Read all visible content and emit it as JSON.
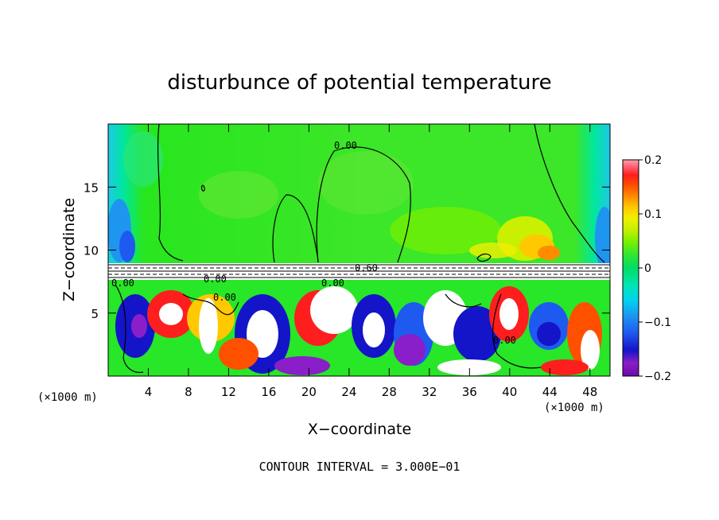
{
  "chart_data": {
    "type": "heatmap",
    "title": "disturbunce of potential temperature",
    "xlabel": "X−coordinate",
    "ylabel": "Z−coordinate",
    "x_unit": "(×1000 m)",
    "x_unit_right": "(×1000 m)",
    "xlim": [
      0,
      50
    ],
    "ylim": [
      0,
      20
    ],
    "xticks": [
      4,
      8,
      12,
      16,
      20,
      24,
      28,
      32,
      36,
      40,
      44,
      48
    ],
    "xtick_labels": [
      "4",
      "8",
      "12",
      "16",
      "20",
      "24",
      "28",
      "32",
      "36",
      "40",
      "44",
      "48"
    ],
    "yticks": [
      5,
      10,
      15
    ],
    "ytick_labels": [
      "5",
      "10",
      "15"
    ],
    "colorbar": {
      "range": [
        -0.2,
        0.2
      ],
      "ticks": [
        0.2,
        0.1,
        0,
        -0.1,
        -0.2
      ],
      "tick_labels": [
        "0.2",
        "0.1",
        "0",
        "−0.1",
        "−0.2"
      ],
      "colors": [
        "#6a0aa8",
        "#8a1ec8",
        "#1414c8",
        "#1e5af0",
        "#1e96f0",
        "#00d2f0",
        "#00e6b4",
        "#00dc64",
        "#32e632",
        "#78f000",
        "#c8f000",
        "#f0f000",
        "#ffc800",
        "#ff8c00",
        "#ff5000",
        "#ff1e1e",
        "#ff6478",
        "#ffa0a8"
      ]
    },
    "contour_labels": [
      "0.00",
      "0.00",
      "0.00",
      "0.00",
      "0.00",
      "0.60",
      "0.00"
    ],
    "contour_interval_text": "CONTOUR INTERVAL = 3.000E−01"
  }
}
